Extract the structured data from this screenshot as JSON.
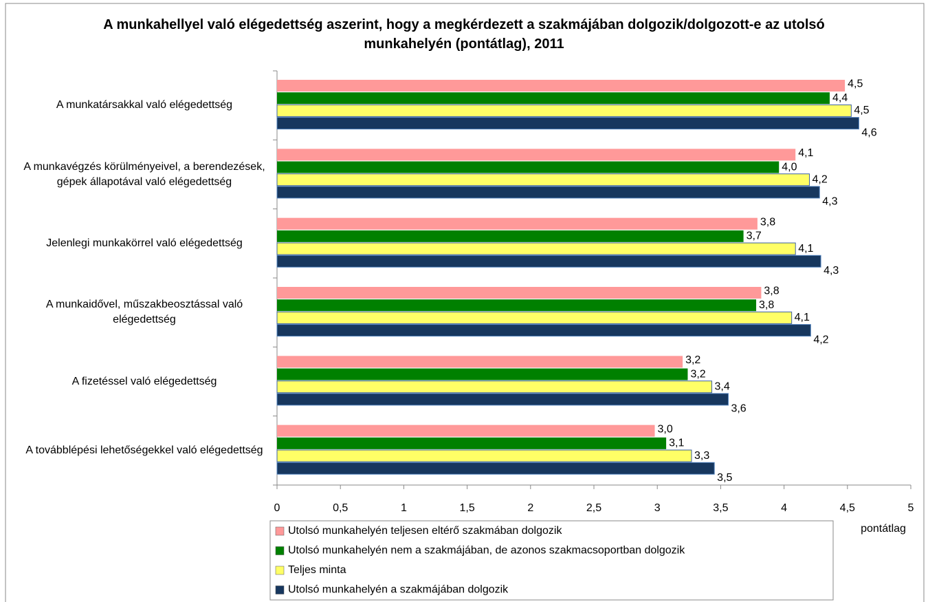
{
  "chart_data": {
    "type": "hbar",
    "title": "A munkahellyel való elégedettség aszerint, hogy a megkérdezett a szakmájában dolgozik/dolgozott-e az utolsó munkahelyén (pontátlag), 2011",
    "x_axis_label": "pontátlag",
    "categories": [
      "A munkatársakkal való elégedettség",
      "A munkavégzés körülményeivel, a berendezések, gépek állapotával való elégedettség",
      "Jelenlegi munkakörrel való elégedettség",
      "A munkaidővel, műszakbeosztással való elégedettség",
      "A fizetéssel való elégedettség",
      "A továbblépési lehetőségekkel való elégedettség"
    ],
    "series": [
      {
        "name": "Utolsó munkahelyén teljesen eltérő szakmában dolgozik",
        "color": "#ff9999",
        "values": [
          4.48,
          4.09,
          3.79,
          3.82,
          3.2,
          2.98
        ],
        "value_labels": [
          "4,5",
          "4,1",
          "3,8",
          "3,8",
          "3,2",
          "3,0"
        ]
      },
      {
        "name": "Utolsó munkahelyén nem a szakmájában, de azonos szakmacsoportban dolgozik",
        "color": "#008000",
        "values": [
          4.36,
          3.96,
          3.68,
          3.78,
          3.24,
          3.07
        ],
        "value_labels": [
          "4,4",
          "4,0",
          "3,7",
          "3,8",
          "3,2",
          "3,1"
        ]
      },
      {
        "name": "Teljes minta",
        "color": "#ffff66",
        "values": [
          4.53,
          4.2,
          4.09,
          4.06,
          3.43,
          3.27
        ],
        "value_labels": [
          "4,5",
          "4,2",
          "4,1",
          "4,1",
          "3,4",
          "3,3"
        ]
      },
      {
        "name": "Utolsó munkahelyén a szakmájában dolgozik",
        "color": "#17375e",
        "values": [
          4.59,
          4.28,
          4.29,
          4.21,
          3.56,
          3.45
        ],
        "value_labels": [
          "4,6",
          "4,3",
          "4,3",
          "4,2",
          "3,6",
          "3,5"
        ]
      }
    ],
    "xlim": [
      0,
      5
    ],
    "xticks": [
      0,
      {
        "value": 0.5,
        "label": "0,5"
      },
      1,
      {
        "value": 1.5,
        "label": "1,5"
      },
      2,
      {
        "value": 2.5,
        "label": "2,5"
      },
      3,
      {
        "value": 3.5,
        "label": "3,5"
      },
      4,
      {
        "value": 4.5,
        "label": "4,5"
      },
      5
    ]
  }
}
